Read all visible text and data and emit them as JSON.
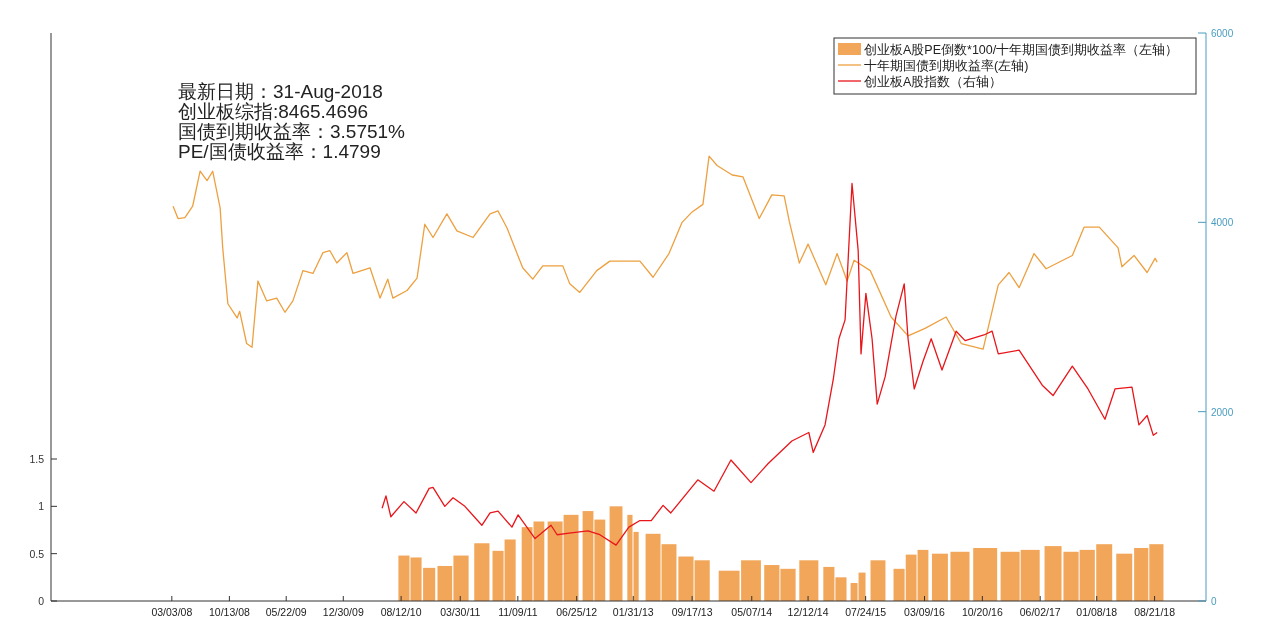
{
  "chart_data": {
    "type": "line",
    "annotations": [
      "最新日期：31-Aug-2018",
      "创业板综指:8465.4696",
      "国债到期收益率：3.5751%",
      "PE/国债收益率：1.4799"
    ],
    "xlim": [
      "2006-11-19",
      "2019-03-09"
    ],
    "xticks": [
      {
        "value": "2008-03-03",
        "label": "03/03/08"
      },
      {
        "value": "2008-10-13",
        "label": "10/13/08"
      },
      {
        "value": "2009-05-22",
        "label": "05/22/09"
      },
      {
        "value": "2009-12-30",
        "label": "12/30/09"
      },
      {
        "value": "2010-08-12",
        "label": "08/12/10"
      },
      {
        "value": "2011-03-30",
        "label": "03/30/11"
      },
      {
        "value": "2011-11-09",
        "label": "11/09/11"
      },
      {
        "value": "2012-06-25",
        "label": "06/25/12"
      },
      {
        "value": "2013-01-31",
        "label": "01/31/13"
      },
      {
        "value": "2013-09-17",
        "label": "09/17/13"
      },
      {
        "value": "2014-05-07",
        "label": "05/07/14"
      },
      {
        "value": "2014-12-12",
        "label": "12/12/14"
      },
      {
        "value": "2015-07-24",
        "label": "07/24/15"
      },
      {
        "value": "2016-03-09",
        "label": "03/09/16"
      },
      {
        "value": "2016-10-20",
        "label": "10/20/16"
      },
      {
        "value": "2017-06-02",
        "label": "06/02/17"
      },
      {
        "value": "2018-01-08",
        "label": "01/08/18"
      },
      {
        "value": "2018-08-21",
        "label": "08/21/18"
      }
    ],
    "ylim": [
      0,
      6
    ],
    "yticks": [
      0,
      0.5,
      1,
      1.5
    ],
    "y2lim": [
      0,
      6000
    ],
    "y2ticks": [
      0,
      2000,
      4000,
      6000
    ],
    "legend": "top right",
    "series": [
      {
        "type": "bar",
        "name": "创业板A股PE倒数*100/十年期国债到期收益率（左轴）",
        "color": "#f2a65a",
        "x": [
          "2010-08-23",
          "2010-10-09",
          "2010-11-29",
          "2011-01-29",
          "2011-04-02",
          "2011-06-22",
          "2011-08-24",
          "2011-10-10",
          "2011-12-15",
          "2012-01-30",
          "2012-04-02",
          "2012-06-03",
          "2012-08-08",
          "2012-09-23",
          "2012-11-25",
          "2013-01-18",
          "2013-02-11",
          "2013-04-18",
          "2013-06-19",
          "2013-08-24",
          "2013-10-26",
          "2014-02-08",
          "2014-05-04",
          "2014-07-24",
          "2014-09-25",
          "2014-12-15",
          "2015-03-03",
          "2015-04-19",
          "2015-06-09",
          "2015-07-10",
          "2015-09-10",
          "2015-12-01",
          "2016-01-17",
          "2016-03-03",
          "2016-05-08",
          "2016-07-25",
          "2016-10-31",
          "2017-02-05",
          "2017-04-24",
          "2017-07-22",
          "2017-09-30",
          "2017-12-02",
          "2018-02-06",
          "2018-04-25",
          "2018-06-30",
          "2018-08-28"
        ],
        "values": [
          0.48,
          0.46,
          0.35,
          0.37,
          0.48,
          0.61,
          0.53,
          0.65,
          0.78,
          0.84,
          0.84,
          0.91,
          0.95,
          0.86,
          1.0,
          0.91,
          0.73,
          0.71,
          0.6,
          0.47,
          0.43,
          0.32,
          0.43,
          0.38,
          0.34,
          0.43,
          0.36,
          0.25,
          0.19,
          0.3,
          0.43,
          0.34,
          0.49,
          0.54,
          0.5,
          0.52,
          0.56,
          0.52,
          0.54,
          0.58,
          0.52,
          0.54,
          0.6,
          0.5,
          0.56,
          0.6
        ]
      },
      {
        "name": "十年期国债到期收益率(左轴)",
        "color": "#eda040",
        "x": [
          "2008-03-08",
          "2008-03-27",
          "2008-04-23",
          "2008-05-23",
          "2008-06-21",
          "2008-07-18",
          "2008-08-09",
          "2008-09-07",
          "2008-09-17",
          "2008-10-07",
          "2008-11-12",
          "2008-11-22",
          "2008-12-19",
          "2009-01-09",
          "2009-02-01",
          "2009-03-07",
          "2009-04-15",
          "2009-05-17",
          "2009-06-17",
          "2009-07-26",
          "2009-09-03",
          "2009-10-12",
          "2009-11-08",
          "2009-12-05",
          "2010-01-13",
          "2010-02-06",
          "2010-04-13",
          "2010-05-22",
          "2010-06-21",
          "2010-07-11",
          "2010-09-04",
          "2010-10-13",
          "2010-11-12",
          "2010-12-14",
          "2011-02-06",
          "2011-03-17",
          "2011-05-19",
          "2011-07-24",
          "2011-08-24",
          "2011-09-28",
          "2011-11-06",
          "2011-11-28",
          "2012-01-06",
          "2012-02-14",
          "2012-05-02",
          "2012-05-29",
          "2012-07-07",
          "2012-09-11",
          "2012-11-01",
          "2012-12-22",
          "2013-02-26",
          "2013-04-18",
          "2013-06-19",
          "2013-08-09",
          "2013-09-17",
          "2013-10-29",
          "2013-11-22",
          "2013-12-23",
          "2014-02-20",
          "2014-04-03",
          "2014-06-05",
          "2014-07-24",
          "2014-09-10",
          "2014-09-30",
          "2014-11-08",
          "2014-12-12",
          "2015-02-19",
          "2015-04-04",
          "2015-05-13",
          "2015-06-09",
          "2015-08-11",
          "2015-10-31",
          "2016-01-05",
          "2016-03-11",
          "2016-06-01",
          "2016-07-30",
          "2016-10-23",
          "2016-12-21",
          "2017-02-01",
          "2017-03-12",
          "2017-05-09",
          "2017-06-25",
          "2017-10-05",
          "2017-11-20",
          "2018-01-18",
          "2018-04-01",
          "2018-04-16",
          "2018-06-02",
          "2018-07-23",
          "2018-08-23",
          "2018-08-31"
        ],
        "values": [
          4.17,
          4.04,
          4.05,
          4.17,
          4.54,
          4.44,
          4.54,
          4.15,
          3.73,
          3.14,
          2.99,
          3.06,
          2.72,
          2.68,
          3.38,
          3.17,
          3.2,
          3.05,
          3.17,
          3.49,
          3.46,
          3.68,
          3.7,
          3.57,
          3.68,
          3.46,
          3.52,
          3.2,
          3.4,
          3.2,
          3.28,
          3.41,
          3.98,
          3.84,
          4.09,
          3.91,
          3.84,
          4.09,
          4.12,
          3.94,
          3.67,
          3.52,
          3.4,
          3.54,
          3.54,
          3.35,
          3.26,
          3.49,
          3.59,
          3.59,
          3.59,
          3.42,
          3.67,
          4.0,
          4.11,
          4.19,
          4.7,
          4.6,
          4.5,
          4.48,
          4.04,
          4.29,
          4.28,
          4.01,
          3.57,
          3.77,
          3.34,
          3.67,
          3.38,
          3.6,
          3.49,
          3.0,
          2.8,
          2.88,
          3.0,
          2.72,
          2.66,
          3.34,
          3.47,
          3.31,
          3.67,
          3.51,
          3.65,
          3.95,
          3.95,
          3.73,
          3.53,
          3.65,
          3.47,
          3.62,
          3.58
        ]
      },
      {
        "name": "创业板A股指数（右轴）",
        "color": "#e8161b",
        "axis": "y2",
        "x": [
          "2010-05-30",
          "2010-06-14",
          "2010-07-03",
          "2010-08-23",
          "2010-10-09",
          "2010-11-29",
          "2010-12-14",
          "2011-01-29",
          "2011-03-02",
          "2011-04-17",
          "2011-06-22",
          "2011-07-24",
          "2011-08-24",
          "2011-10-17",
          "2011-11-10",
          "2012-01-15",
          "2012-03-17",
          "2012-04-10",
          "2012-06-03",
          "2012-08-08",
          "2012-09-23",
          "2012-11-25",
          "2013-01-14",
          "2013-02-26",
          "2013-04-11",
          "2013-05-27",
          "2013-06-26",
          "2013-10-09",
          "2013-12-11",
          "2014-02-15",
          "2014-05-04",
          "2014-07-09",
          "2014-10-10",
          "2014-12-15",
          "2015-01-01",
          "2015-02-16",
          "2015-03-20",
          "2015-04-11",
          "2015-05-05",
          "2015-06-01",
          "2015-06-25",
          "2015-07-06",
          "2015-07-25",
          "2015-08-18",
          "2015-09-07",
          "2015-10-08",
          "2015-11-19",
          "2015-12-21",
          "2016-01-05",
          "2016-01-29",
          "2016-03-03",
          "2016-04-04",
          "2016-05-16",
          "2016-07-10",
          "2016-08-14",
          "2016-10-26",
          "2016-11-27",
          "2016-12-21",
          "2017-03-12",
          "2017-06-10",
          "2017-07-22",
          "2017-10-05",
          "2017-12-05",
          "2018-02-09",
          "2018-03-20",
          "2018-05-25",
          "2018-06-21",
          "2018-07-23",
          "2018-08-16",
          "2018-08-31"
        ],
        "values": [
          980,
          1110,
          890,
          1050,
          930,
          1190,
          1200,
          1000,
          1090,
          1000,
          800,
          930,
          950,
          780,
          910,
          660,
          800,
          700,
          720,
          740,
          700,
          590,
          780,
          850,
          850,
          1010,
          930,
          1280,
          1160,
          1490,
          1250,
          1450,
          1690,
          1780,
          1570,
          1860,
          2340,
          2770,
          2970,
          4410,
          3700,
          2610,
          3250,
          2770,
          2080,
          2370,
          3010,
          3350,
          2770,
          2240,
          2530,
          2770,
          2440,
          2850,
          2750,
          2810,
          2850,
          2610,
          2650,
          2280,
          2170,
          2480,
          2240,
          1920,
          2240,
          2260,
          1860,
          1960,
          1750,
          1780
        ]
      }
    ]
  }
}
